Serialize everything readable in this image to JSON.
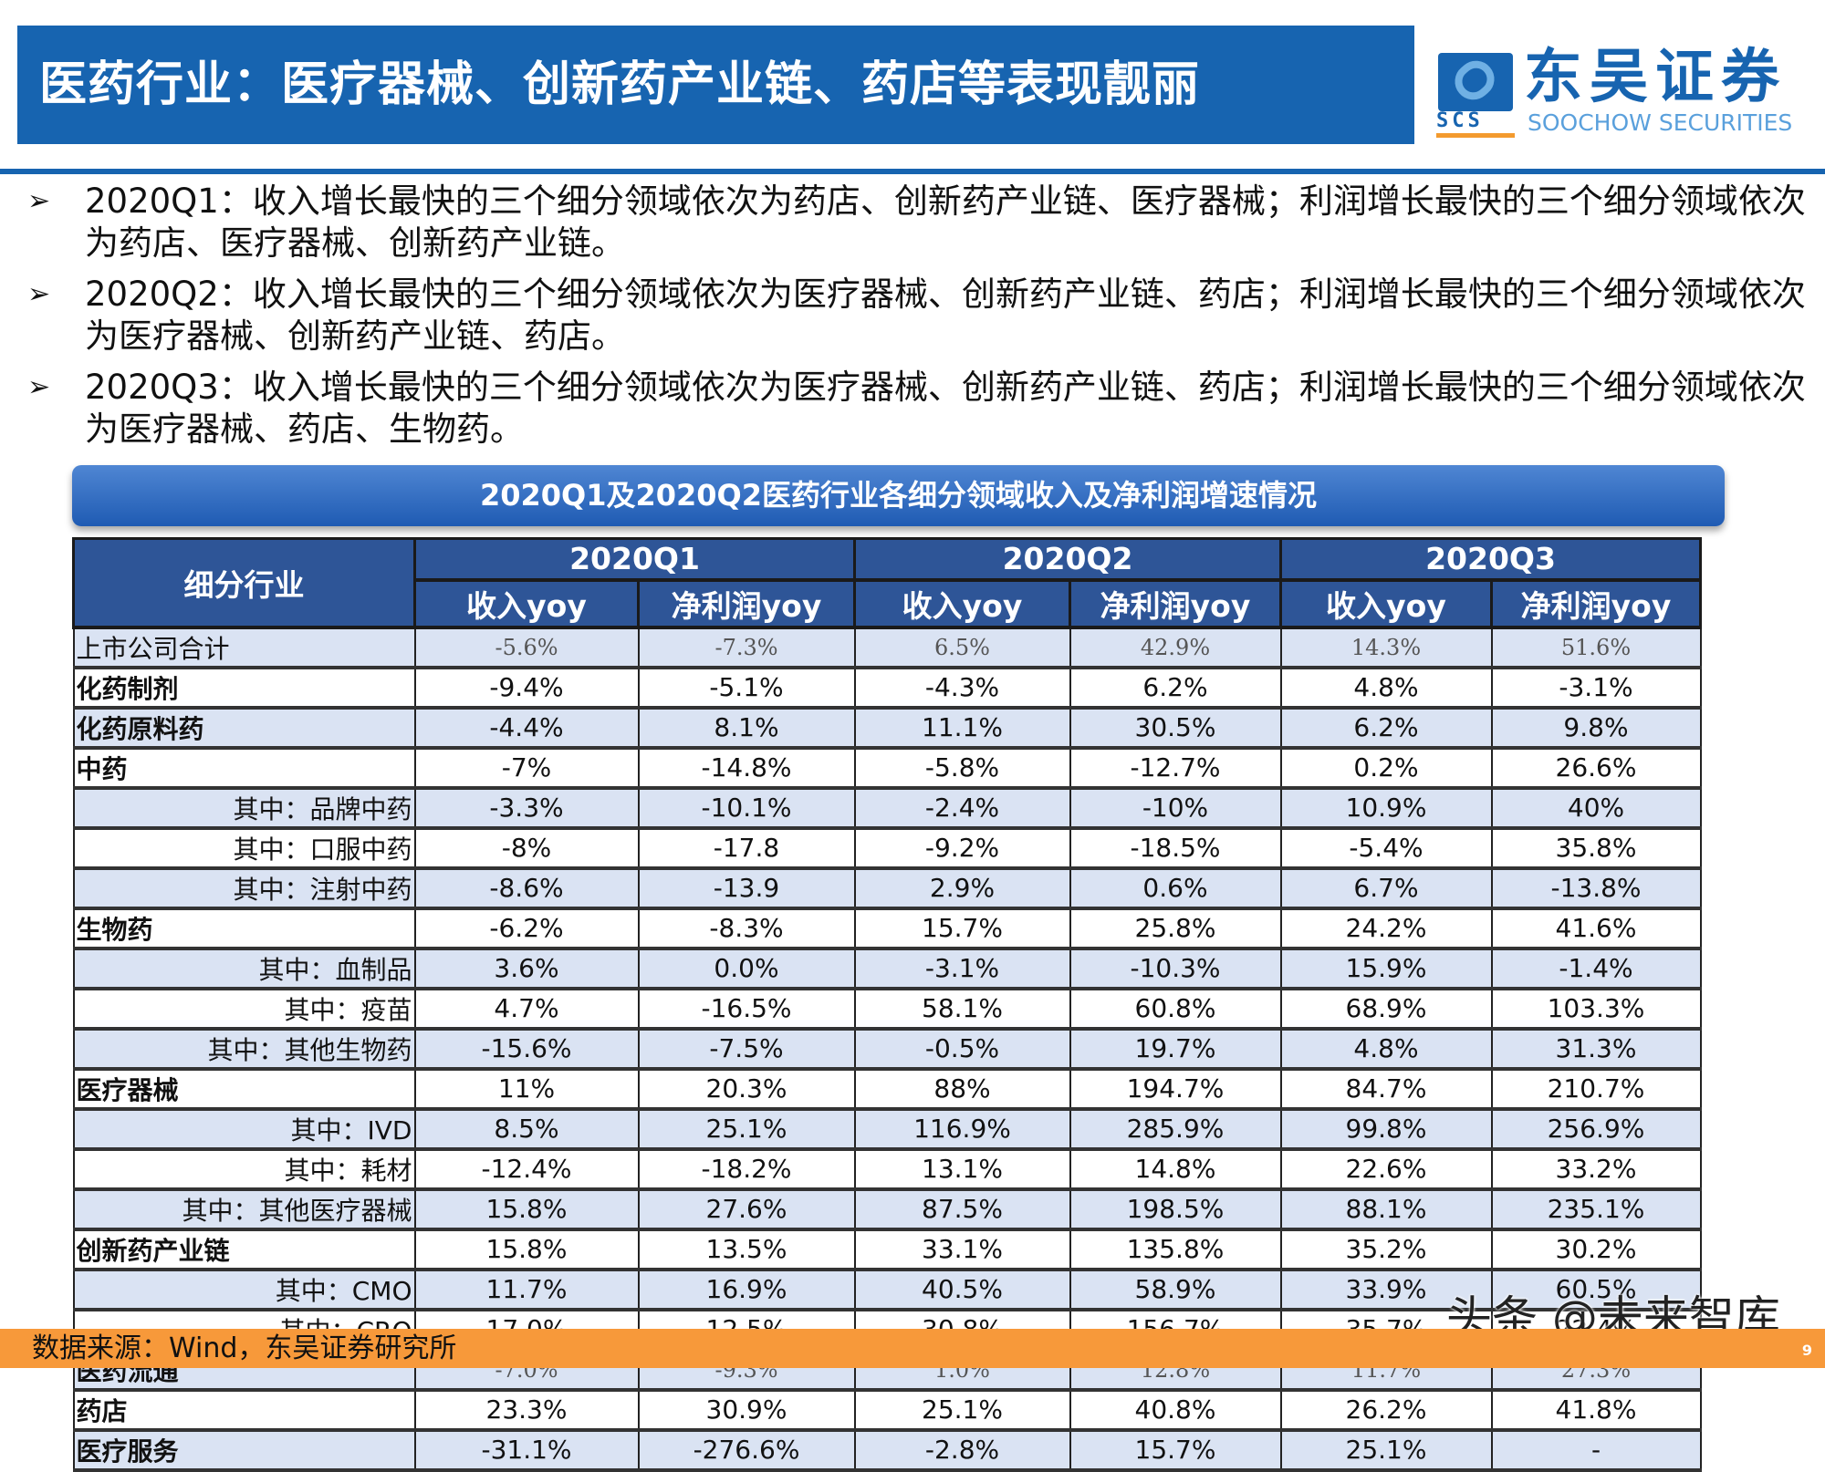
{
  "header": {
    "title": "医药行业：医疗器械、创新药产业链、药店等表现靓丽"
  },
  "logo": {
    "cn": "东吴证券",
    "en": "SOOCHOW SECURITIES",
    "mark": "SCS",
    "brand_color": "#1764b0"
  },
  "bullets": [
    {
      "icon": "arrow-bullet-icon",
      "glyph": "➢",
      "text": "2020Q1：收入增长最快的三个细分领域依次为药店、创新药产业链、医疗器械；利润增长最快的三个细分领域依次为药店、医疗器械、创新药产业链。"
    },
    {
      "icon": "arrow-bullet-icon",
      "glyph": "➢",
      "text": "2020Q2：收入增长最快的三个细分领域依次为医疗器械、创新药产业链、药店；利润增长最快的三个细分领域依次为医疗器械、创新药产业链、药店。"
    },
    {
      "icon": "arrow-bullet-icon",
      "glyph": "➢",
      "text": "2020Q3：收入增长最快的三个细分领域依次为医疗器械、创新药产业链、药店；利润增长最快的三个细分领域依次为医疗器械、药店、生物药。"
    }
  ],
  "table": {
    "caption": "2020Q1及2020Q2医药行业各细分领域收入及净利润增速情况",
    "corner": "细分行业",
    "quarters": [
      "2020Q1",
      "2020Q2",
      "2020Q3"
    ],
    "subheaders": [
      "收入yoy",
      "净利润yoy",
      "收入yoy",
      "净利润yoy",
      "收入yoy",
      "净利润yoy"
    ],
    "rows": [
      {
        "label": "上市公司合计",
        "level": "total",
        "values": [
          "-5.6%",
          "-7.3%",
          "6.5%",
          "42.9%",
          "14.3%",
          "51.6%"
        ]
      },
      {
        "label": "化药制剂",
        "level": "main",
        "values": [
          "-9.4%",
          "-5.1%",
          "-4.3%",
          "6.2%",
          "4.8%",
          "-3.1%"
        ]
      },
      {
        "label": "化药原料药",
        "level": "main",
        "values": [
          "-4.4%",
          "8.1%",
          "11.1%",
          "30.5%",
          "6.2%",
          "9.8%"
        ]
      },
      {
        "label": "中药",
        "level": "main",
        "values": [
          "-7%",
          "-14.8%",
          "-5.8%",
          "-12.7%",
          "0.2%",
          "26.6%"
        ]
      },
      {
        "label": "其中：品牌中药",
        "level": "sub",
        "values": [
          "-3.3%",
          "-10.1%",
          "-2.4%",
          "-10%",
          "10.9%",
          "40%"
        ]
      },
      {
        "label": "其中：口服中药",
        "level": "sub",
        "values": [
          "-8%",
          "-17.8",
          "-9.2%",
          "-18.5%",
          "-5.4%",
          "35.8%"
        ]
      },
      {
        "label": "其中：注射中药",
        "level": "sub",
        "values": [
          "-8.6%",
          "-13.9",
          "2.9%",
          "0.6%",
          "6.7%",
          "-13.8%"
        ]
      },
      {
        "label": "生物药",
        "level": "main",
        "values": [
          "-6.2%",
          "-8.3%",
          "15.7%",
          "25.8%",
          "24.2%",
          "41.6%"
        ]
      },
      {
        "label": "其中：血制品",
        "level": "sub",
        "values": [
          "3.6%",
          "0.0%",
          "-3.1%",
          "-10.3%",
          "15.9%",
          "-1.4%"
        ]
      },
      {
        "label": "其中：疫苗",
        "level": "sub",
        "values": [
          "4.7%",
          "-16.5%",
          "58.1%",
          "60.8%",
          "68.9%",
          "103.3%"
        ]
      },
      {
        "label": "其中：其他生物药",
        "level": "sub",
        "values": [
          "-15.6%",
          "-7.5%",
          "-0.5%",
          "19.7%",
          "4.8%",
          "31.3%"
        ]
      },
      {
        "label": "医疗器械",
        "level": "main",
        "values": [
          "11%",
          "20.3%",
          "88%",
          "194.7%",
          "84.7%",
          "210.7%"
        ]
      },
      {
        "label": "其中：IVD",
        "level": "sub",
        "values": [
          "8.5%",
          "25.1%",
          "116.9%",
          "285.9%",
          "99.8%",
          "256.9%"
        ]
      },
      {
        "label": "其中：耗材",
        "level": "sub",
        "values": [
          "-12.4%",
          "-18.2%",
          "13.1%",
          "14.8%",
          "22.6%",
          "33.2%"
        ]
      },
      {
        "label": "其中：其他医疗器械",
        "level": "sub",
        "values": [
          "15.8%",
          "27.6%",
          "87.5%",
          "198.5%",
          "88.1%",
          "235.1%"
        ]
      },
      {
        "label": "创新药产业链",
        "level": "main",
        "values": [
          "15.8%",
          "13.5%",
          "33.1%",
          "135.8%",
          "35.2%",
          "30.2%"
        ]
      },
      {
        "label": "其中：CMO",
        "level": "sub",
        "values": [
          "11.7%",
          "16.9%",
          "40.5%",
          "58.9%",
          "33.9%",
          "60.5%"
        ]
      },
      {
        "label": "其中：CRO",
        "level": "sub",
        "values": [
          "17.0%",
          "12.5%",
          "30.8%",
          "156.7%",
          "35.7%",
          "22.4%"
        ]
      },
      {
        "label": "医药流通",
        "level": "main-serif",
        "values": [
          "-7.0%",
          "-9.3%",
          "1.0%",
          "12.8%",
          "11.7%",
          "27.3%"
        ]
      },
      {
        "label": "药店",
        "level": "main",
        "values": [
          "23.3%",
          "30.9%",
          "25.1%",
          "40.8%",
          "26.2%",
          "41.8%"
        ]
      },
      {
        "label": "医疗服务",
        "level": "main",
        "values": [
          "-31.1%",
          "-276.6%",
          "-2.8%",
          "15.7%",
          "25.1%",
          "-"
        ]
      }
    ]
  },
  "footer": {
    "source": "数据来源：Wind，东吴证券研究所",
    "page": "9",
    "color": "#f7993a"
  },
  "watermark": "头条 @未来智库"
}
